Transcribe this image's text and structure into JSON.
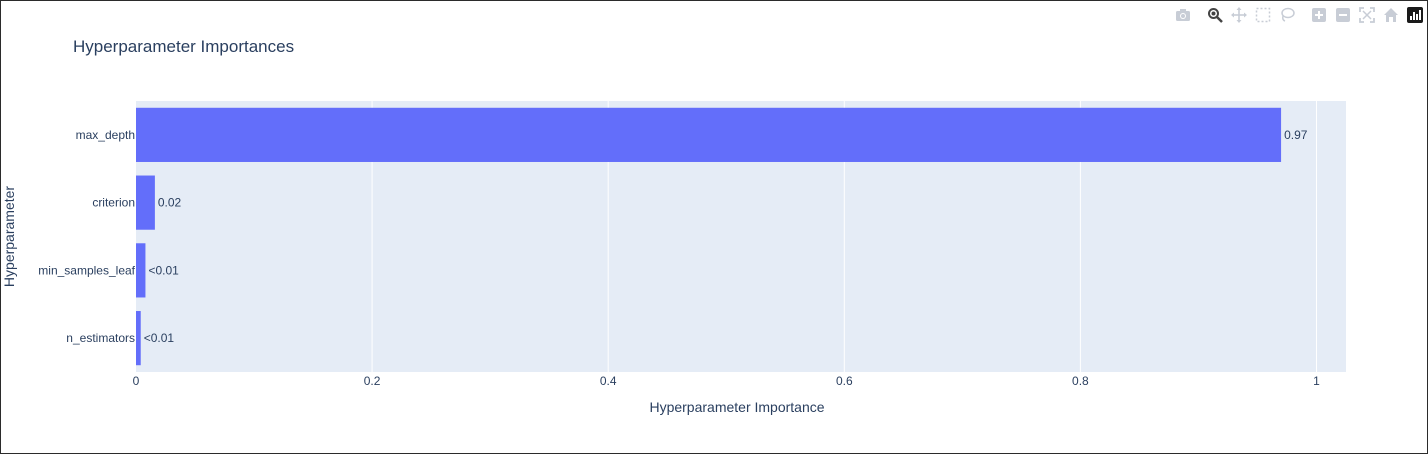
{
  "modebar": {
    "icons": [
      "camera-icon",
      "zoom-icon",
      "pan-icon",
      "box-select-icon",
      "lasso-select-icon",
      "zoom-in-icon",
      "zoom-out-icon",
      "autoscale-icon",
      "reset-axes-icon",
      "plotly-logo-icon"
    ]
  },
  "colors": {
    "bar": "#636efa",
    "plot_bg": "#e5ecf6",
    "grid": "#ffffff",
    "text": "#2a3f5f"
  },
  "chart_data": {
    "type": "bar",
    "orientation": "horizontal",
    "title": "Hyperparameter Importances",
    "xlabel": "Hyperparameter Importance",
    "ylabel": "Hyperparameter",
    "xlim": [
      0,
      1.025
    ],
    "xticks": [
      0,
      0.2,
      0.4,
      0.6,
      0.8,
      1
    ],
    "xtick_labels": [
      "0",
      "0.2",
      "0.4",
      "0.6",
      "0.8",
      "1"
    ],
    "categories": [
      "max_depth",
      "criterion",
      "min_samples_leaf",
      "n_estimators"
    ],
    "values": [
      0.97,
      0.016,
      0.008,
      0.004
    ],
    "data_labels": [
      "0.97",
      "0.02",
      "<0.01",
      "<0.01"
    ],
    "grid": true,
    "legend": "none"
  }
}
